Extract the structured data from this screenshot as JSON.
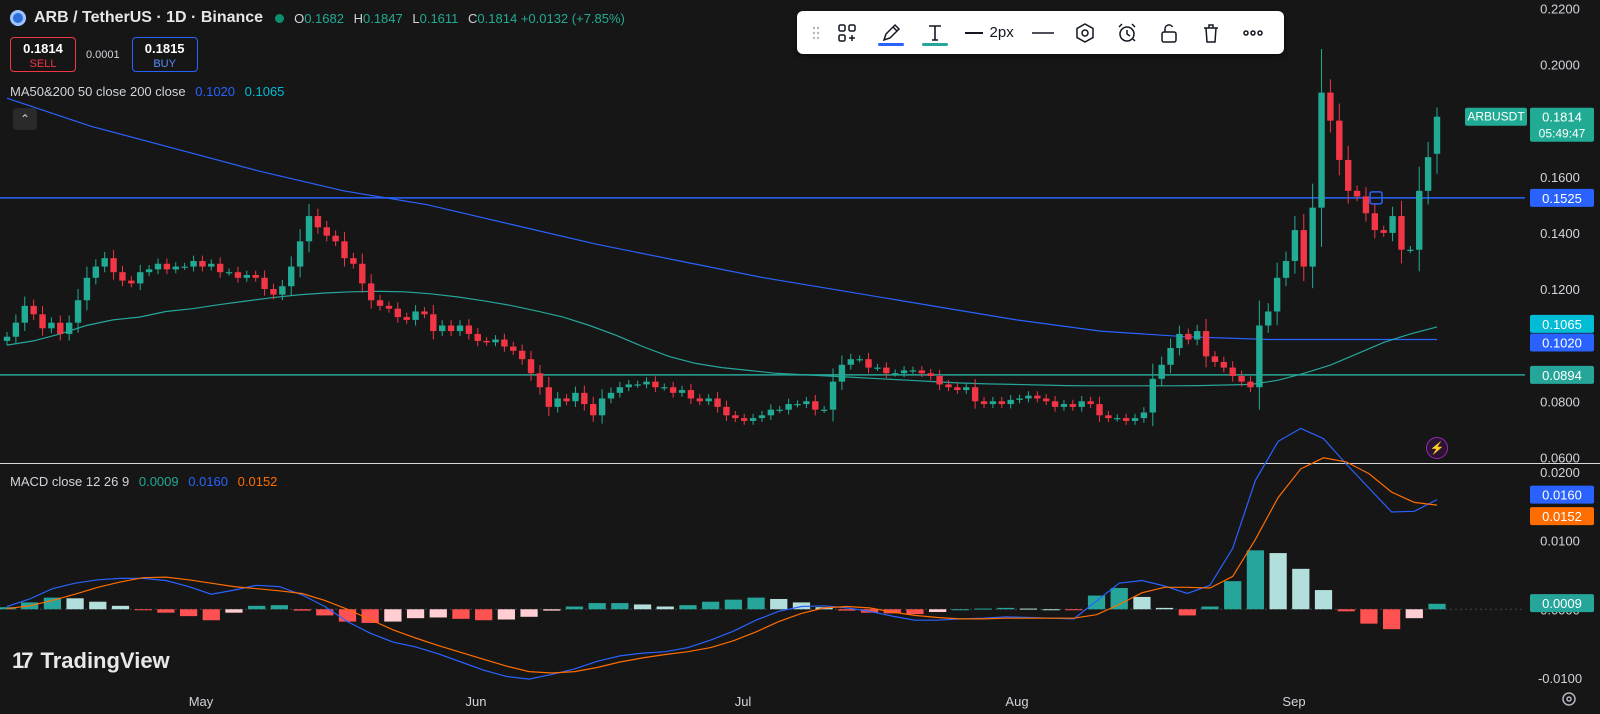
{
  "header": {
    "symbol_title": "ARB / TetherUS · 1D · Binance",
    "open_label": "O",
    "open_value": "0.1682",
    "high_label": "H",
    "high_value": "0.1847",
    "low_label": "L",
    "low_value": "0.1611",
    "close_label": "C",
    "close_value": "0.1814",
    "change": "+0.0132 (+7.85%)"
  },
  "trade": {
    "sell_price": "0.1814",
    "sell_label": "SELL",
    "spread": "0.0001",
    "buy_price": "0.1815",
    "buy_label": "BUY"
  },
  "ma_legend": {
    "text": "MA50&200 50 close 200 close",
    "ma50_value": "0.1020",
    "ma200_value": "0.1065"
  },
  "macd_legend": {
    "text": "MACD close 12 26 9",
    "hist_value": "0.0009",
    "macd_value": "0.0160",
    "signal_value": "0.0152"
  },
  "toolbar": {
    "line_width_label": "2px"
  },
  "branding": {
    "name": "TradingView",
    "mark": "17"
  },
  "icons": {
    "collapse": "chevron-up-icon",
    "alert": "lightning-icon",
    "settings": "gear-icon"
  },
  "colors": {
    "up": "#22ab94",
    "down": "#f23645",
    "ma50": "#26a69a",
    "ma200": "#2962ff",
    "hline_blue": "#2962ff",
    "hline_teal": "#26a69a",
    "macd_line": "#2962ff",
    "signal_line": "#ff6d00"
  },
  "chart_data": [
    {
      "type": "candlestick",
      "title": "ARB / TetherUS · 1D · Binance",
      "x_labels": [
        "May",
        "Jun",
        "Jul",
        "Aug",
        "Sep"
      ],
      "y_ticks": [
        "0.2200",
        "0.2000",
        "0.1800",
        "0.1600",
        "0.1400",
        "0.1200",
        "0.1000",
        "0.0800",
        "0.0600"
      ],
      "ylim": [
        0.058,
        0.223
      ],
      "grid": false,
      "series_name": "ARBUSDT",
      "last_price_label": "0.1814",
      "countdown": "05:49:47",
      "horizontal_lines": [
        {
          "value": 0.1525,
          "label": "0.1525",
          "color": "#2962ff"
        },
        {
          "value": 0.0894,
          "label": "0.0894",
          "color": "#26a69a"
        }
      ],
      "price_scale_labels": [
        {
          "value": 0.1065,
          "label": "0.1065",
          "color": "#00bcd4"
        },
        {
          "value": 0.102,
          "label": "0.1020",
          "color": "#2962ff"
        }
      ],
      "closes": [
        0.103,
        0.108,
        0.114,
        0.111,
        0.106,
        0.108,
        0.104,
        0.108,
        0.116,
        0.124,
        0.128,
        0.131,
        0.126,
        0.123,
        0.122,
        0.126,
        0.127,
        0.129,
        0.127,
        0.128,
        0.128,
        0.13,
        0.128,
        0.129,
        0.126,
        0.126,
        0.124,
        0.125,
        0.124,
        0.12,
        0.118,
        0.121,
        0.128,
        0.137,
        0.146,
        0.142,
        0.139,
        0.137,
        0.131,
        0.129,
        0.122,
        0.116,
        0.114,
        0.113,
        0.11,
        0.109,
        0.112,
        0.111,
        0.105,
        0.107,
        0.105,
        0.107,
        0.104,
        0.1015,
        0.101,
        0.102,
        0.0995,
        0.098,
        0.095,
        0.09,
        0.085,
        0.078,
        0.081,
        0.08,
        0.083,
        0.079,
        0.075,
        0.081,
        0.083,
        0.085,
        0.086,
        0.086,
        0.087,
        0.085,
        0.085,
        0.083,
        0.084,
        0.081,
        0.08,
        0.081,
        0.078,
        0.075,
        0.074,
        0.073,
        0.074,
        0.075,
        0.077,
        0.077,
        0.079,
        0.079,
        0.08,
        0.077,
        0.077,
        0.087,
        0.093,
        0.095,
        0.095,
        0.092,
        0.092,
        0.09,
        0.09,
        0.091,
        0.091,
        0.09,
        0.089,
        0.086,
        0.085,
        0.084,
        0.085,
        0.08,
        0.079,
        0.08,
        0.079,
        0.0805,
        0.081,
        0.082,
        0.081,
        0.08,
        0.078,
        0.079,
        0.078,
        0.08,
        0.079,
        0.075,
        0.074,
        0.074,
        0.073,
        0.074,
        0.076,
        0.088,
        0.093,
        0.099,
        0.104,
        0.102,
        0.105,
        0.096,
        0.094,
        0.092,
        0.089,
        0.087,
        0.085,
        0.107,
        0.112,
        0.124,
        0.13,
        0.141,
        0.128,
        0.149,
        0.19,
        0.18,
        0.166,
        0.155,
        0.153,
        0.147,
        0.141,
        0.14,
        0.146,
        0.134,
        0.134,
        0.155,
        0.167,
        0.1814
      ],
      "ma50_values": [
        0.1,
        0.1015,
        0.104,
        0.107,
        0.109,
        0.11,
        0.112,
        0.113,
        0.1144,
        0.1157,
        0.1169,
        0.1179,
        0.1186,
        0.119,
        0.1192,
        0.119,
        0.1183,
        0.1172,
        0.1158,
        0.1142,
        0.1122,
        0.11,
        0.107,
        0.1035,
        0.0995,
        0.096,
        0.0935,
        0.092,
        0.091,
        0.09,
        0.0895,
        0.089,
        0.0885,
        0.088,
        0.0875,
        0.087,
        0.0865,
        0.0862,
        0.086,
        0.0858,
        0.0856,
        0.0855,
        0.0855,
        0.0855,
        0.0855,
        0.0856,
        0.0858,
        0.086,
        0.0875,
        0.09,
        0.093,
        0.097,
        0.101,
        0.104,
        0.1065
      ],
      "ma200_values": [
        0.188,
        0.178,
        0.17,
        0.162,
        0.155,
        0.15,
        0.143,
        0.136,
        0.13,
        0.124,
        0.119,
        0.114,
        0.109,
        0.105,
        0.103,
        0.102,
        0.102,
        0.102
      ],
      "price_legend": {
        "open": 0.1682,
        "high": 0.1847,
        "low": 0.1611,
        "close": 0.1814
      }
    },
    {
      "type": "line",
      "title": "MACD close 12 26 9",
      "y_ticks": [
        "0.0200",
        "0.0100",
        "0.0000",
        "-0.0100"
      ],
      "ylim": [
        -0.0112,
        0.0212
      ],
      "series": [
        {
          "name": "MACD",
          "color": "#2962ff",
          "last": 0.016
        },
        {
          "name": "Signal",
          "color": "#ff6d00",
          "last": 0.0152
        },
        {
          "name": "Histogram",
          "last": 0.0009
        }
      ],
      "value_labels": [
        "0.0160",
        "0.0152",
        "0.0009"
      ],
      "macd_values": [
        0.0004,
        0.0015,
        0.003,
        0.0038,
        0.0043,
        0.0045,
        0.0045,
        0.0042,
        0.0033,
        0.0022,
        0.0028,
        0.0035,
        0.0033,
        0.0021,
        0.0004,
        -0.0018,
        -0.0035,
        -0.0048,
        -0.0055,
        -0.0065,
        -0.0077,
        -0.0089,
        -0.0098,
        -0.0102,
        -0.0095,
        -0.0087,
        -0.0076,
        -0.0068,
        -0.0064,
        -0.0062,
        -0.0056,
        -0.0045,
        -0.0032,
        -0.0016,
        -0.0003,
        0.0004,
        0.0005,
        0.0002,
        -0.0003,
        -0.001,
        -0.0016,
        -0.0016,
        -0.0014,
        -0.0013,
        -0.0011,
        -0.0012,
        -0.0013,
        -0.0014,
        0.0012,
        0.0038,
        0.0042,
        0.0034,
        0.0023,
        0.0035,
        0.0089,
        0.0188,
        0.0245,
        0.0264,
        0.0249,
        0.0212,
        0.0177,
        0.0142,
        0.0143,
        0.016
      ],
      "signal_values": [
        0.0001,
        0.0005,
        0.0013,
        0.0022,
        0.0032,
        0.004,
        0.0046,
        0.0047,
        0.0043,
        0.0038,
        0.0033,
        0.003,
        0.0027,
        0.0023,
        0.0013,
        0.0,
        -0.0015,
        -0.003,
        -0.0042,
        -0.0053,
        -0.0063,
        -0.0073,
        -0.0083,
        -0.0091,
        -0.0093,
        -0.0091,
        -0.0085,
        -0.0077,
        -0.0071,
        -0.0066,
        -0.0062,
        -0.0056,
        -0.0046,
        -0.0033,
        -0.0018,
        -0.0006,
        0.0002,
        0.0004,
        0.0002,
        -0.0004,
        -0.0009,
        -0.0012,
        -0.0014,
        -0.0014,
        -0.0013,
        -0.0013,
        -0.0013,
        -0.0013,
        -0.0008,
        0.0007,
        0.0024,
        0.0032,
        0.0032,
        0.0031,
        0.0048,
        0.0102,
        0.0163,
        0.0205,
        0.0221,
        0.0215,
        0.0198,
        0.0171,
        0.0156,
        0.0152
      ]
    }
  ]
}
